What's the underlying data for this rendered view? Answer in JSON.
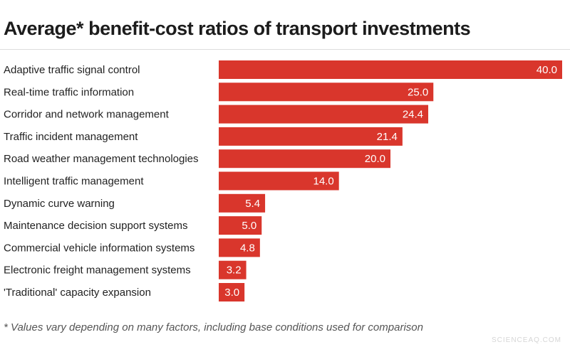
{
  "title": "Average* benefit-cost ratios of transport investments",
  "footnote": "* Values vary depending on many factors, including base conditions used for comparison",
  "watermark": "SCIENCEAQ.COM",
  "colors": {
    "bar": "#d9362c",
    "bar_label": "#ffffff",
    "category_text": "#222222"
  },
  "chart_data": {
    "type": "bar",
    "orientation": "horizontal",
    "categories": [
      "Adaptive traffic signal control",
      "Real-time traffic information",
      "Corridor and network management",
      "Traffic incident management",
      "Road weather management technologies",
      "Intelligent traffic management",
      "Dynamic curve warning",
      "Maintenance decision support systems",
      "Commercial vehicle information systems",
      "Electronic freight management systems",
      "'Traditional' capacity expansion"
    ],
    "values": [
      40.0,
      25.0,
      24.4,
      21.4,
      20.0,
      14.0,
      5.4,
      5.0,
      4.8,
      3.2,
      3.0
    ],
    "value_labels": [
      "40.0",
      "25.0",
      "24.4",
      "21.4",
      "20.0",
      "14.0",
      "5.4",
      "5.0",
      "4.8",
      "3.2",
      "3.0"
    ],
    "xlim": [
      0,
      40
    ],
    "grid": false,
    "legend": "none"
  }
}
